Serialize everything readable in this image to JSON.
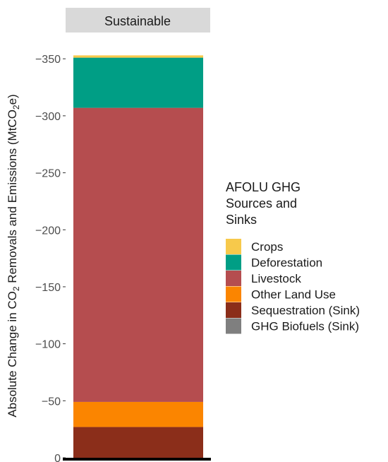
{
  "chart_data": {
    "type": "bar",
    "stacked": true,
    "panel_label": "Sustainable",
    "categories": [
      "Sustainable"
    ],
    "ylabel_parts": [
      "Absolute Change in CO",
      "2",
      " Removals and Emissions (MtCO",
      "2",
      "e)"
    ],
    "ylim": [
      0,
      -355
    ],
    "y_reversed": true,
    "y_ticks": [
      0,
      -50,
      -100,
      -150,
      -200,
      -250,
      -300,
      -350
    ],
    "y_tick_labels": [
      "0",
      "−50",
      "−100",
      "−150",
      "−200",
      "−250",
      "−300",
      "−350"
    ],
    "series": [
      {
        "name": "Crops",
        "color": "#F7C94B",
        "values": [
          -2
        ]
      },
      {
        "name": "Deforestation",
        "color": "#009E85",
        "values": [
          -44
        ]
      },
      {
        "name": "Livestock",
        "color": "#B54D4F",
        "values": [
          -258
        ]
      },
      {
        "name": "Other Land Use",
        "color": "#FB8500",
        "values": [
          -22
        ]
      },
      {
        "name": "Sequestration (Sink)",
        "color": "#8B2E1A",
        "values": [
          -27
        ]
      },
      {
        "name": "GHG Biofuels (Sink)",
        "color": "#7F7F7F",
        "values": [
          0
        ]
      }
    ],
    "stack_order_bottom_to_top": [
      "GHG Biofuels (Sink)",
      "Sequestration (Sink)",
      "Other Land Use",
      "Livestock",
      "Deforestation",
      "Crops"
    ],
    "legend": {
      "title_lines": [
        "AFOLU GHG",
        "Sources and",
        "Sinks"
      ],
      "position": "right"
    },
    "grid": false
  }
}
